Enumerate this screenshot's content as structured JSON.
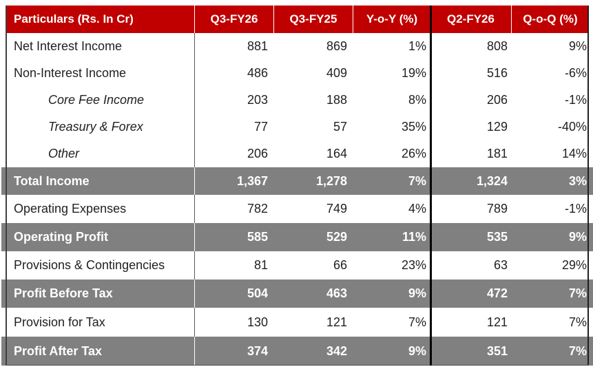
{
  "table": {
    "columns": [
      "Particulars (Rs. In Cr)",
      "Q3-FY26",
      "Q3-FY25",
      "Y-o-Y (%)",
      "Q2-FY26",
      "Q-o-Q (%)"
    ],
    "rows": [
      {
        "label": "Net Interest Income",
        "style": "normal",
        "values": [
          "881",
          "869",
          "1%",
          "808",
          "9%"
        ]
      },
      {
        "label": "Non-Interest Income",
        "style": "normal",
        "values": [
          "486",
          "409",
          "19%",
          "516",
          "-6%"
        ]
      },
      {
        "label": "Core Fee Income",
        "style": "sub",
        "values": [
          "203",
          "188",
          "8%",
          "206",
          "-1%"
        ]
      },
      {
        "label": "Treasury & Forex",
        "style": "sub",
        "values": [
          "77",
          "57",
          "35%",
          "129",
          "-40%"
        ]
      },
      {
        "label": "Other",
        "style": "sub",
        "values": [
          "206",
          "164",
          "26%",
          "181",
          "14%"
        ]
      },
      {
        "label": "Total Income",
        "style": "total",
        "values": [
          "1,367",
          "1,278",
          "7%",
          "1,324",
          "3%"
        ]
      },
      {
        "label": "Operating Expenses",
        "style": "normal",
        "values": [
          "782",
          "749",
          "4%",
          "789",
          "-1%"
        ]
      },
      {
        "label": "Operating Profit",
        "style": "total",
        "values": [
          "585",
          "529",
          "11%",
          "535",
          "9%"
        ]
      },
      {
        "label": "Provisions & Contingencies",
        "style": "normal",
        "values": [
          "81",
          "66",
          "23%",
          "63",
          "29%"
        ]
      },
      {
        "label": "Profit Before Tax",
        "style": "total",
        "values": [
          "504",
          "463",
          "9%",
          "472",
          "7%"
        ]
      },
      {
        "label": "Provision for Tax",
        "style": "normal",
        "values": [
          "130",
          "121",
          "7%",
          "121",
          "7%"
        ]
      },
      {
        "label": "Profit After Tax",
        "style": "total",
        "values": [
          "374",
          "342",
          "9%",
          "351",
          "7%"
        ]
      }
    ],
    "colors": {
      "header_bg": "#C00000",
      "header_text": "#FFFFFF",
      "highlight_row_bg": "#808080",
      "highlight_row_text": "#FFFFFF",
      "body_text": "#212121"
    }
  }
}
